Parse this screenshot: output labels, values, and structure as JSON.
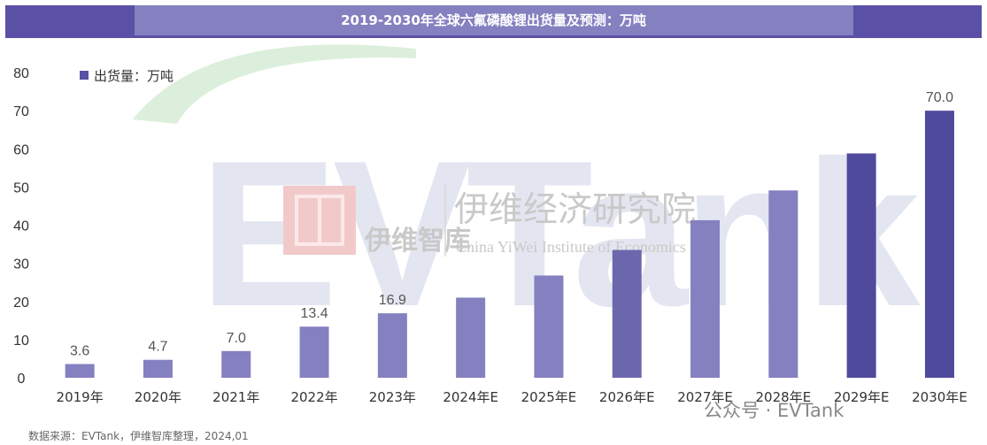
{
  "banner": {
    "title": "2019-2030年全球六氟磷酸锂出货量及预测：万吨"
  },
  "watermark": {
    "logo_name": "伊维智库",
    "institute_cn": "伊维经济研究院",
    "institute_en": "China YiWei Institute of Economics",
    "brand": "EVTank"
  },
  "source": "数据来源：EVTank，伊维智库整理，2024,01",
  "wechat_label": "公众号 · EVTank",
  "colors": {
    "banner": "#5a50a5",
    "banner_light": "#8580c0",
    "bar_base": "#6a62b0",
    "bar_dark": "#4f4a9c"
  },
  "chart_data": {
    "type": "bar",
    "categories": [
      "2019年",
      "2020年",
      "2021年",
      "2022年",
      "2023年",
      "2024年E",
      "2025年E",
      "2026年E",
      "2027年E",
      "2028年E",
      "2029年E",
      "2030年E"
    ],
    "series": [
      {
        "name": "出货量：万吨",
        "values": [
          3.6,
          4.7,
          7.0,
          13.4,
          16.9,
          21.0,
          26.8,
          33.5,
          41.3,
          49.1,
          58.8,
          70.0
        ]
      }
    ],
    "data_labels": [
      "3.6",
      "4.7",
      "7.0",
      "13.4",
      "16.9",
      "",
      "",
      "",
      "",
      "",
      "",
      "70.0"
    ],
    "ylim": [
      0,
      80
    ],
    "yticks": [
      0,
      10,
      20,
      30,
      40,
      50,
      60,
      70,
      80
    ],
    "legend": "top-left",
    "grid": false
  }
}
